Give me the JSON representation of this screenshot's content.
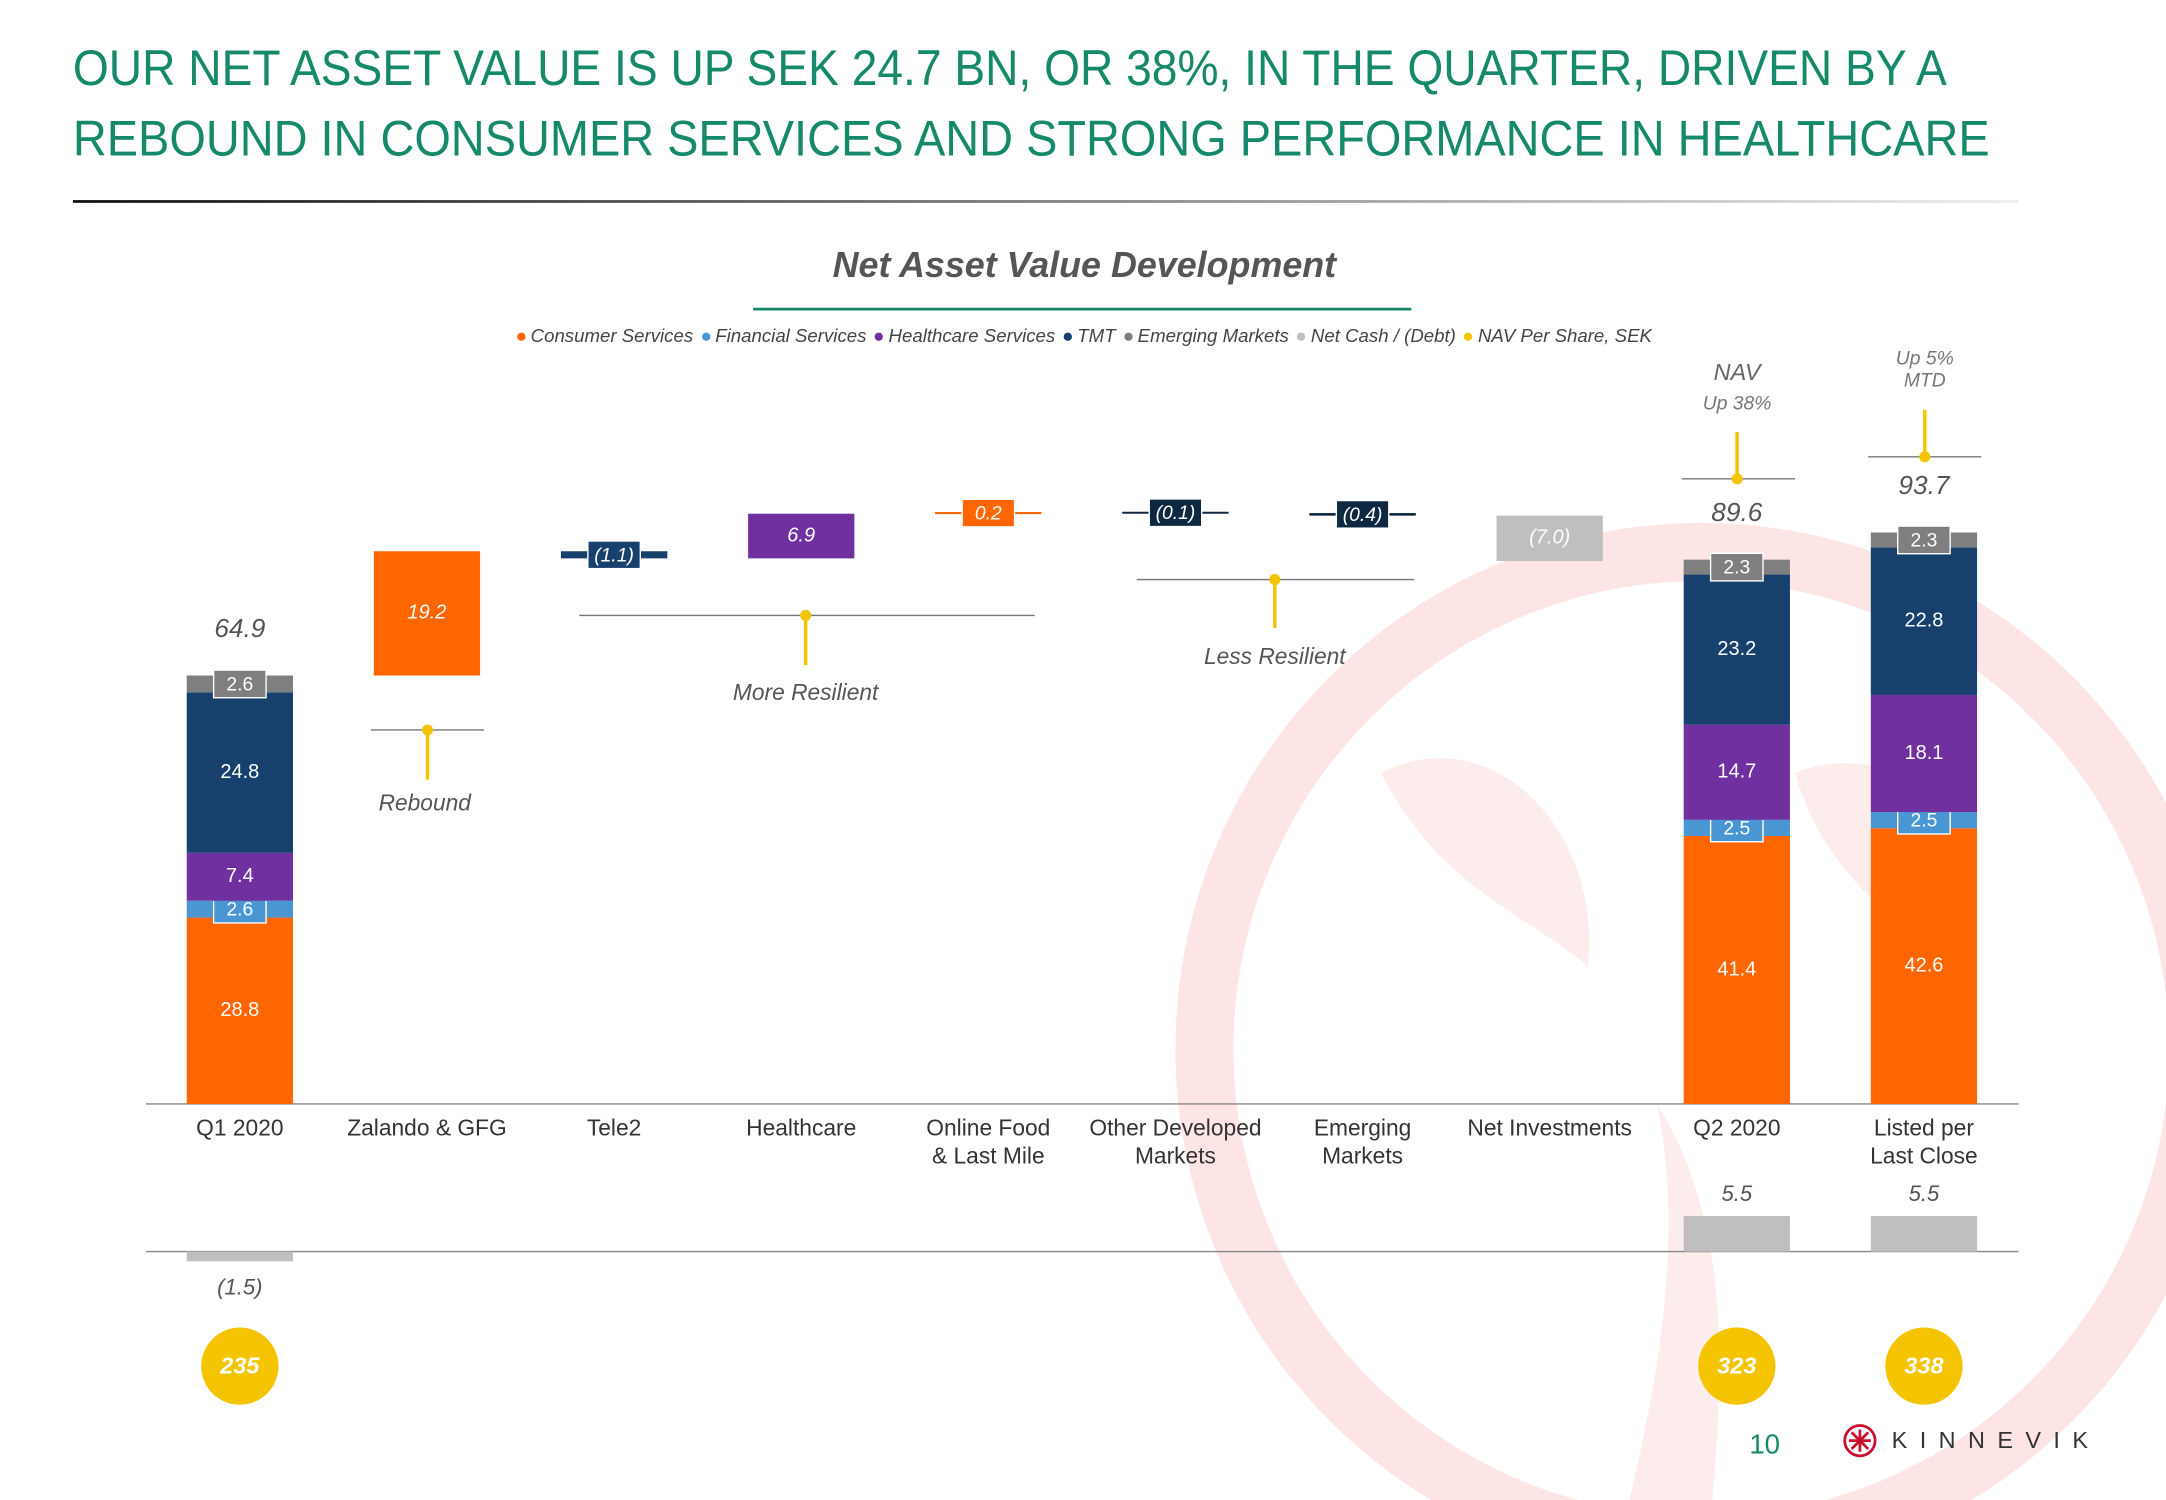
{
  "header": {
    "title": [
      "OUR NET ASSET VALUE IS UP SEK 24.7 BN, OR 38%, IN THE QUARTER, DRIVEN BY A",
      "REBOUND IN CONSUMER SERVICES AND STRONG PERFORMANCE IN HEALTHCARE"
    ]
  },
  "chart_data": {
    "type": "waterfall",
    "title": "Net Asset Value Development",
    "categories": [
      "Q1 2020",
      "Zalando & GFG",
      "Tele2",
      "Healthcare",
      "Online Food & Last Mile",
      "Other Developed Markets",
      "Emerging Markets",
      "Net Investments",
      "Q2 2020",
      "Listed per Last Close"
    ],
    "series": [
      {
        "name": "Consumer Services",
        "color": "#ff6600",
        "values": [
          28.8,
          null,
          null,
          null,
          null,
          null,
          null,
          null,
          41.4,
          42.6
        ]
      },
      {
        "name": "Financial Services",
        "color": "#4a96d2",
        "values": [
          2.6,
          null,
          null,
          null,
          null,
          null,
          null,
          null,
          2.5,
          2.5
        ]
      },
      {
        "name": "Healthcare Services",
        "color": "#7030a0",
        "values": [
          7.4,
          null,
          null,
          null,
          null,
          null,
          null,
          null,
          14.7,
          18.1
        ]
      },
      {
        "name": "TMT",
        "color": "#17406d",
        "values": [
          24.8,
          null,
          null,
          null,
          null,
          null,
          null,
          null,
          23.2,
          22.8
        ]
      },
      {
        "name": "Emerging Markets",
        "color": "#7f7f7f",
        "values": [
          2.6,
          null,
          null,
          null,
          null,
          null,
          null,
          null,
          2.3,
          2.3
        ]
      }
    ],
    "steps": {
      "values": [
        null,
        19.2,
        -1.1,
        6.9,
        0.2,
        -0.1,
        -0.4,
        -7.0,
        null,
        null
      ],
      "value_labels": [
        null,
        "19.2",
        "(1.1)",
        "6.9",
        "0.2",
        "(0.1)",
        "(0.4)",
        "(7.0)",
        null,
        null
      ],
      "colors": [
        null,
        "#ff6600",
        "#17406d",
        "#7030a0",
        "#ff6600",
        "#0e2841",
        "#0e2841",
        "#bfbfbf",
        null,
        null
      ]
    },
    "totals": [
      64.9,
      null,
      null,
      null,
      null,
      null,
      null,
      null,
      89.6,
      93.7
    ],
    "net_cash": {
      "name": "Net Cash / (Debt)",
      "color": "#bfbfbf",
      "values": [
        -1.5,
        null,
        null,
        null,
        null,
        null,
        null,
        null,
        5.5,
        5.5
      ],
      "value_labels": [
        "(1.5)",
        null,
        null,
        null,
        null,
        null,
        null,
        null,
        "5.5",
        "5.5"
      ]
    },
    "nav_per_share": {
      "name": "NAV Per Share, SEK",
      "color": "#f5c400",
      "values": [
        235,
        null,
        null,
        null,
        null,
        null,
        null,
        null,
        323,
        338
      ]
    },
    "annotations": [
      "NAV",
      "Up 38%",
      "Up 5% MTD",
      "Rebound",
      "More Resilient",
      "Less Resilient"
    ],
    "ylim": [
      0,
      100
    ]
  },
  "footer": {
    "page_number": "10",
    "logo": "KINNEVIK"
  }
}
